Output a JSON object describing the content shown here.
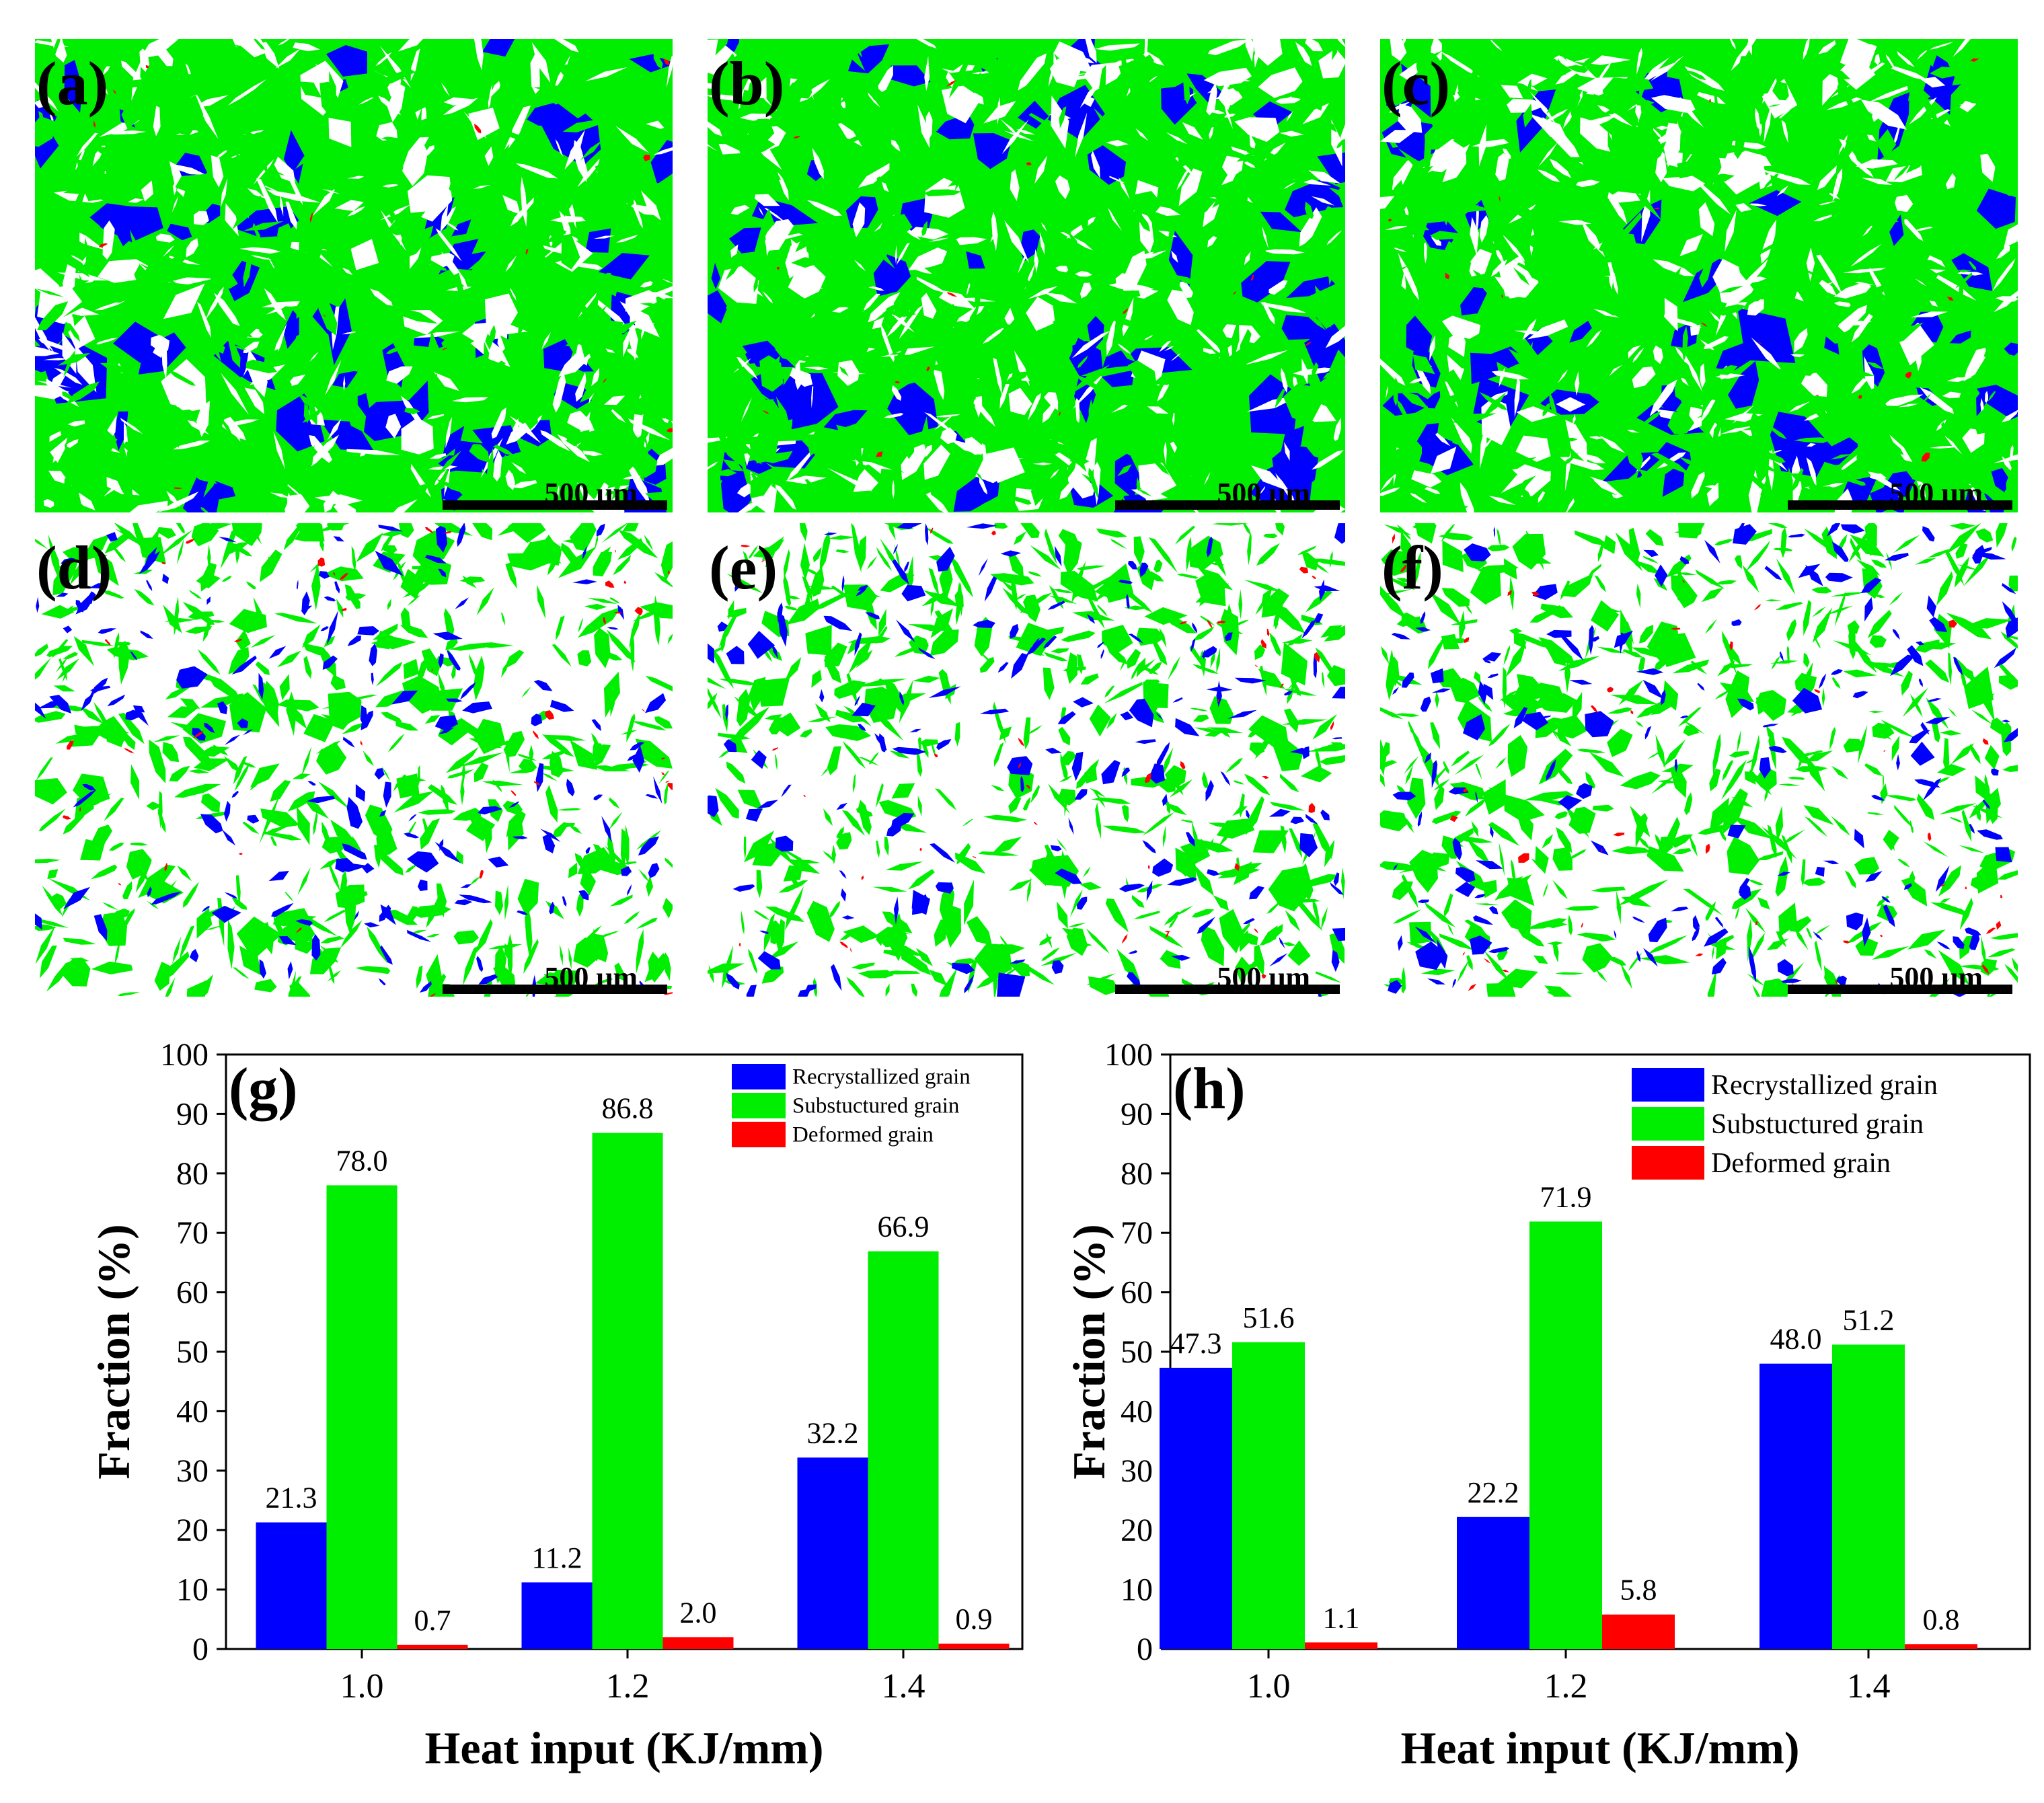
{
  "colors": {
    "recrystallized": "#0000ff",
    "substructured": "#00ee00",
    "deformed": "#ff0000",
    "background": "#ffffff"
  },
  "maps": [
    {
      "label": "(a)",
      "scale_bar": "500 μm"
    },
    {
      "label": "(b)",
      "scale_bar": "500 μm"
    },
    {
      "label": "(c)",
      "scale_bar": "500 μm"
    },
    {
      "label": "(d)",
      "scale_bar": "500 μm"
    },
    {
      "label": "(e)",
      "scale_bar": "500 μm"
    },
    {
      "label": "(f)",
      "scale_bar": "500 μm"
    }
  ],
  "chart_data": [
    {
      "type": "bar",
      "panel_label": "(g)",
      "xlabel": "Heat input (KJ/mm)",
      "ylabel": "Fraction (%)",
      "ylim": [
        0,
        100
      ],
      "yticks": [
        "0",
        "10",
        "20",
        "30",
        "40",
        "50",
        "60",
        "70",
        "80",
        "90",
        "100"
      ],
      "categories": [
        "1.0",
        "1.2",
        "1.4"
      ],
      "legend_position": "top-right",
      "series": [
        {
          "name": "Recrystallized grain",
          "color": "#0000ff",
          "values": [
            21.3,
            11.2,
            32.2
          ],
          "labels": [
            "21.3",
            "11.2",
            "32.2"
          ]
        },
        {
          "name": "Substuctured grain",
          "color": "#00ee00",
          "values": [
            78.0,
            86.8,
            66.9
          ],
          "labels": [
            "78.0",
            "86.8",
            "66.9"
          ]
        },
        {
          "name": "Deformed grain",
          "color": "#ff0000",
          "values": [
            0.7,
            2.0,
            0.9
          ],
          "labels": [
            "0.7",
            "2.0",
            "0.9"
          ]
        }
      ]
    },
    {
      "type": "bar",
      "panel_label": "(h)",
      "xlabel": "Heat input (KJ/mm)",
      "ylabel": "Fraction (%)",
      "ylim": [
        0,
        100
      ],
      "yticks": [
        "0",
        "10",
        "20",
        "30",
        "40",
        "50",
        "60",
        "70",
        "80",
        "90",
        "100"
      ],
      "categories": [
        "1.0",
        "1.2",
        "1.4"
      ],
      "legend_position": "top-right",
      "series": [
        {
          "name": "Recrystallized grain",
          "color": "#0000ff",
          "values": [
            47.3,
            22.2,
            48.0
          ],
          "labels": [
            "47.3",
            "22.2",
            "48.0"
          ]
        },
        {
          "name": "Substuctured grain",
          "color": "#00ee00",
          "values": [
            51.6,
            71.9,
            51.2
          ],
          "labels": [
            "51.6",
            "71.9",
            "51.2"
          ]
        },
        {
          "name": "Deformed grain",
          "color": "#ff0000",
          "values": [
            1.1,
            5.8,
            0.8
          ],
          "labels": [
            "1.1",
            "5.8",
            "0.8"
          ]
        }
      ]
    }
  ]
}
